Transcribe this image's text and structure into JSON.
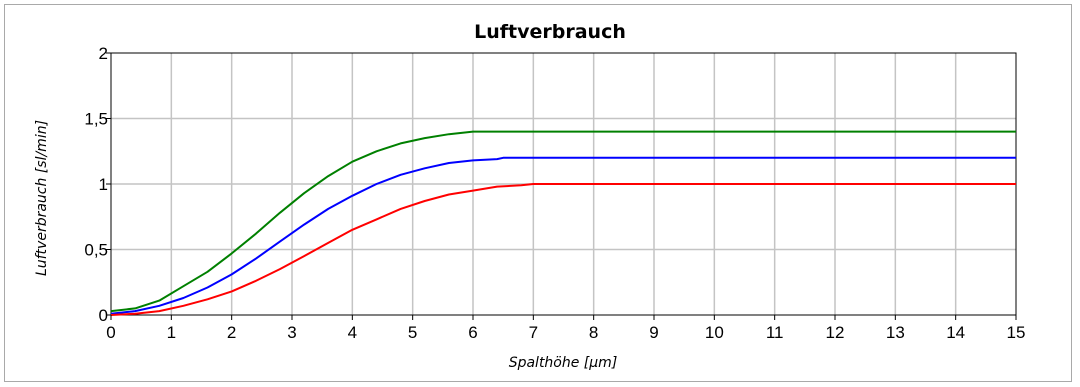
{
  "chart_data": {
    "type": "line",
    "title": "Luftverbrauch",
    "xlabel": "Spalthöhe [µm]",
    "ylabel": "Luftverbrauch [sl/min]",
    "xlim": [
      0,
      15
    ],
    "ylim": [
      0,
      2
    ],
    "x_ticks": [
      "0",
      "1",
      "2",
      "3",
      "4",
      "5",
      "6",
      "7",
      "8",
      "9",
      "10",
      "11",
      "12",
      "13",
      "14",
      "15"
    ],
    "y_ticks": [
      {
        "value": 0,
        "label": "0"
      },
      {
        "value": 0.5,
        "label": "0,5"
      },
      {
        "value": 1,
        "label": "1"
      },
      {
        "value": 1.5,
        "label": "1,5"
      },
      {
        "value": 2,
        "label": "2"
      }
    ],
    "grid": true,
    "series": [
      {
        "color": "#008000",
        "points": [
          [
            0,
            0.03
          ],
          [
            0.4,
            0.05
          ],
          [
            0.8,
            0.11
          ],
          [
            1.2,
            0.22
          ],
          [
            1.6,
            0.33
          ],
          [
            2,
            0.47
          ],
          [
            2.4,
            0.62
          ],
          [
            2.8,
            0.78
          ],
          [
            3.2,
            0.93
          ],
          [
            3.6,
            1.06
          ],
          [
            4,
            1.17
          ],
          [
            4.4,
            1.25
          ],
          [
            4.8,
            1.31
          ],
          [
            5.2,
            1.35
          ],
          [
            5.6,
            1.38
          ],
          [
            6,
            1.4
          ],
          [
            15,
            1.4
          ]
        ]
      },
      {
        "color": "#0000ff",
        "points": [
          [
            0,
            0.01
          ],
          [
            0.4,
            0.03
          ],
          [
            0.8,
            0.07
          ],
          [
            1.2,
            0.13
          ],
          [
            1.6,
            0.21
          ],
          [
            2,
            0.31
          ],
          [
            2.4,
            0.43
          ],
          [
            2.8,
            0.56
          ],
          [
            3.2,
            0.69
          ],
          [
            3.6,
            0.81
          ],
          [
            4,
            0.91
          ],
          [
            4.4,
            1.0
          ],
          [
            4.8,
            1.07
          ],
          [
            5.2,
            1.12
          ],
          [
            5.6,
            1.16
          ],
          [
            6,
            1.18
          ],
          [
            6.4,
            1.19
          ],
          [
            6.5,
            1.2
          ],
          [
            15,
            1.2
          ]
        ]
      },
      {
        "color": "#ff0000",
        "points": [
          [
            0,
            0.0
          ],
          [
            0.4,
            0.01
          ],
          [
            0.8,
            0.03
          ],
          [
            1.2,
            0.07
          ],
          [
            1.6,
            0.12
          ],
          [
            2,
            0.18
          ],
          [
            2.4,
            0.26
          ],
          [
            2.8,
            0.35
          ],
          [
            3.2,
            0.45
          ],
          [
            3.6,
            0.55
          ],
          [
            4,
            0.65
          ],
          [
            4.4,
            0.73
          ],
          [
            4.8,
            0.81
          ],
          [
            5.2,
            0.87
          ],
          [
            5.6,
            0.92
          ],
          [
            6,
            0.95
          ],
          [
            6.4,
            0.98
          ],
          [
            6.8,
            0.99
          ],
          [
            7,
            1.0
          ],
          [
            15,
            1.0
          ]
        ]
      }
    ]
  }
}
